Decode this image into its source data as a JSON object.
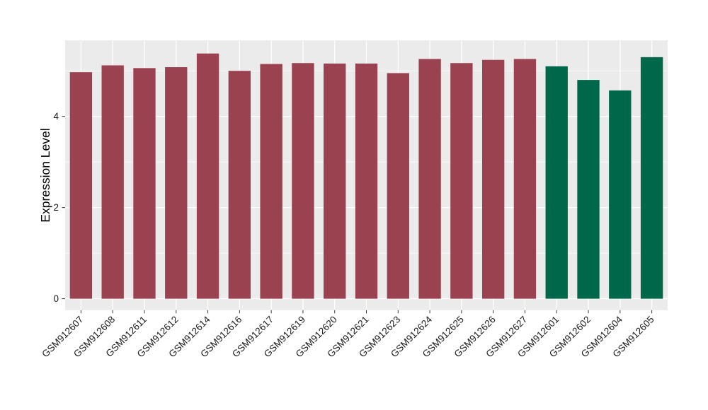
{
  "chart_data": {
    "type": "bar",
    "title": "",
    "xlabel": "",
    "ylabel": "Expression Level",
    "categories": [
      "GSM912607",
      "GSM912608",
      "GSM912611",
      "GSM912612",
      "GSM912614",
      "GSM912616",
      "GSM912617",
      "GSM912619",
      "GSM912620",
      "GSM912621",
      "GSM912623",
      "GSM912624",
      "GSM912625",
      "GSM912626",
      "GSM912627",
      "GSM912601",
      "GSM912602",
      "GSM912604",
      "GSM912605"
    ],
    "values": [
      4.97,
      5.12,
      5.06,
      5.08,
      5.38,
      5.0,
      5.15,
      5.17,
      5.16,
      5.16,
      4.95,
      5.26,
      5.17,
      5.24,
      5.26,
      5.1,
      4.8,
      4.57,
      5.3
    ],
    "bar_colors": [
      "#9B4251",
      "#9B4251",
      "#9B4251",
      "#9B4251",
      "#9B4251",
      "#9B4251",
      "#9B4251",
      "#9B4251",
      "#9B4251",
      "#9B4251",
      "#9B4251",
      "#9B4251",
      "#9B4251",
      "#9B4251",
      "#9B4251",
      "#00684A",
      "#00684A",
      "#00684A",
      "#00684A"
    ],
    "group_colors": {
      "group_red": "#9B4251",
      "group_green": "#00684A"
    },
    "yticks": [
      0,
      2,
      4
    ],
    "minor_yticks": [
      1,
      3,
      5
    ],
    "ylim": [
      -0.25,
      5.67
    ],
    "bar_width_ratio": 0.7,
    "panel_background": "#EBEBEB",
    "grid_color": "#FFFFFF",
    "axis_text_color": "#1A1A1A",
    "tick_mark_color": "#333333",
    "legend": "none",
    "x_label_rotation_deg": 45
  }
}
